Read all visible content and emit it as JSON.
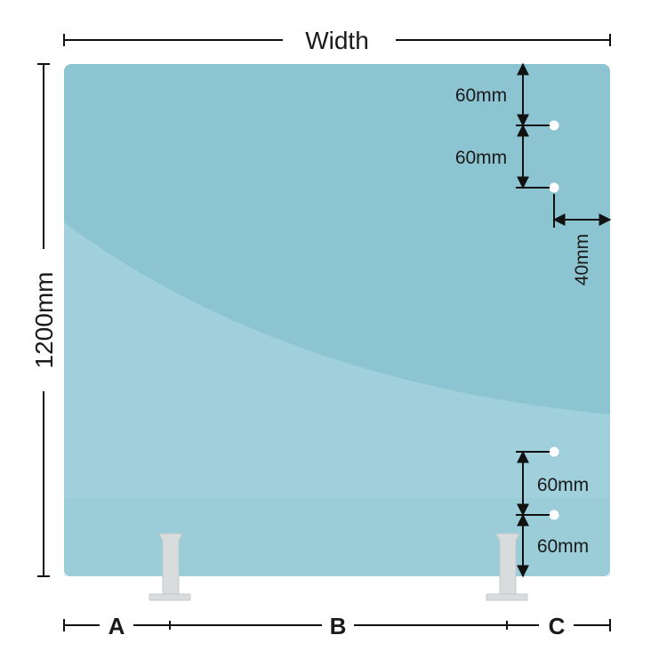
{
  "diagram": {
    "top_dimension_label": "Width",
    "left_dimension_label": "1200mm",
    "top_hole_spacing_1": "60mm",
    "top_hole_spacing_2": "60mm",
    "edge_offset": "40mm",
    "bottom_hole_spacing_1": "60mm",
    "bottom_hole_spacing_2": "60mm",
    "segment_a": "A",
    "segment_b": "B",
    "segment_c": "C"
  },
  "colors": {
    "panel": "#8cc5d1",
    "panel_highlight": "#a6d3dd",
    "dimension_lines": "#111111",
    "holes": "#ffffff",
    "feet": "#d8dcdd"
  }
}
